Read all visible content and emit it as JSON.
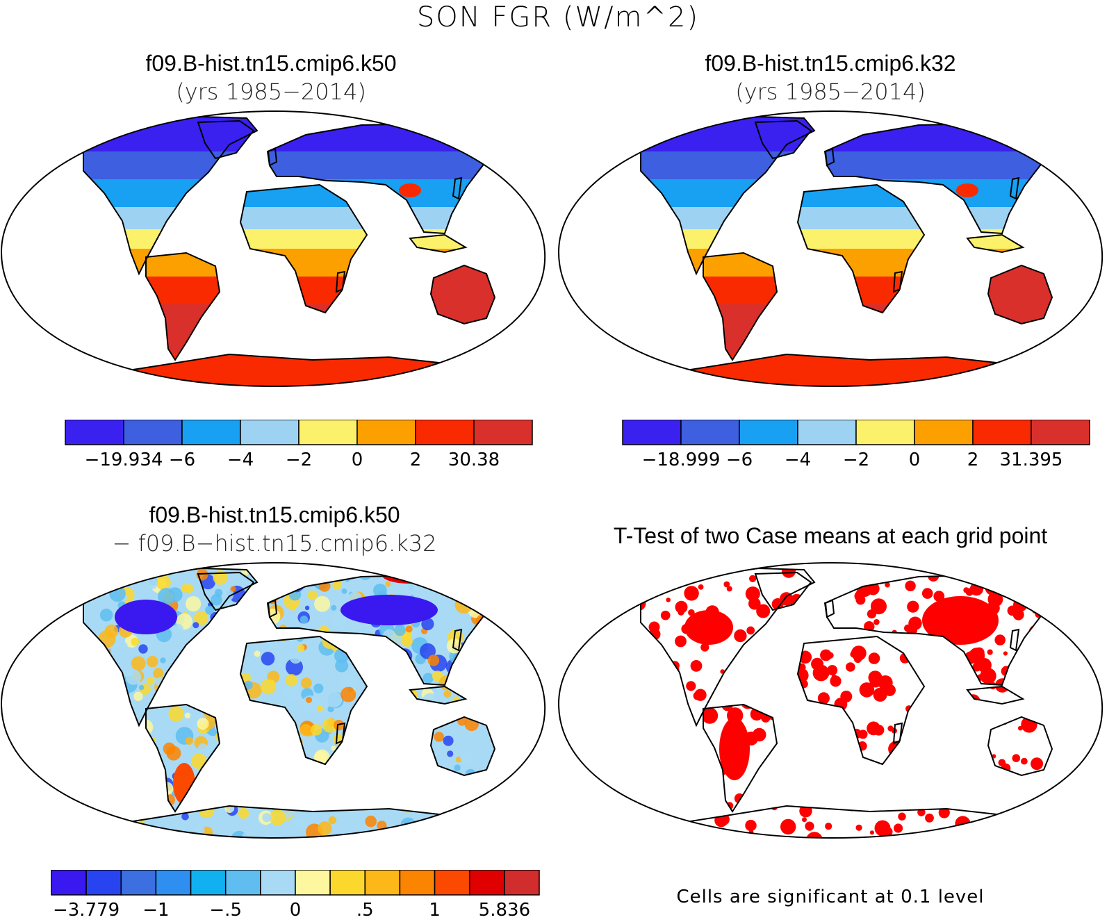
{
  "title": "SON FGR (W/m^2)",
  "panels": [
    {
      "id": "case1",
      "title": "f09.B-hist.tn15.cmip6.k50",
      "subtitle": "(yrs 1985−2014)",
      "colorbar": {
        "colors": [
          "#3a21f0",
          "#3d5fe0",
          "#18a0f2",
          "#9dd2f2",
          "#fcf16a",
          "#fca000",
          "#fa2a00",
          "#d9302b"
        ],
        "labels": [
          "−19.934",
          "−6",
          "−4",
          "−2",
          "0",
          "2",
          "30.38"
        ]
      }
    },
    {
      "id": "case2",
      "title": "f09.B-hist.tn15.cmip6.k32",
      "subtitle": "(yrs 1985−2014)",
      "colorbar": {
        "colors": [
          "#3a21f0",
          "#3d5fe0",
          "#18a0f2",
          "#9dd2f2",
          "#fcf16a",
          "#fca000",
          "#fa2a00",
          "#d9302b"
        ],
        "labels": [
          "−18.999",
          "−6",
          "−4",
          "−2",
          "0",
          "2",
          "31.395"
        ]
      }
    },
    {
      "id": "diff",
      "title": "f09.B-hist.tn15.cmip6.k50",
      "subtitle": "− f09.B−hist.tn15.cmip6.k32",
      "colorbar": {
        "colors": [
          "#3a18f0",
          "#2844f0",
          "#3c6fe0",
          "#2f8ff0",
          "#11b0f0",
          "#5fbdf0",
          "#a8daf5",
          "#fdf7a0",
          "#fcd82c",
          "#fcb718",
          "#fb8400",
          "#fb4a00",
          "#e00000",
          "#d12d2d"
        ],
        "labels": [
          "−3.779",
          "−1",
          "−.5",
          "0",
          ".5",
          "1",
          "5.836"
        ]
      }
    },
    {
      "id": "ttest",
      "title": "T-Test of two Case means at each grid point",
      "footnote": "Cells are significant at 0.1 level"
    }
  ]
}
